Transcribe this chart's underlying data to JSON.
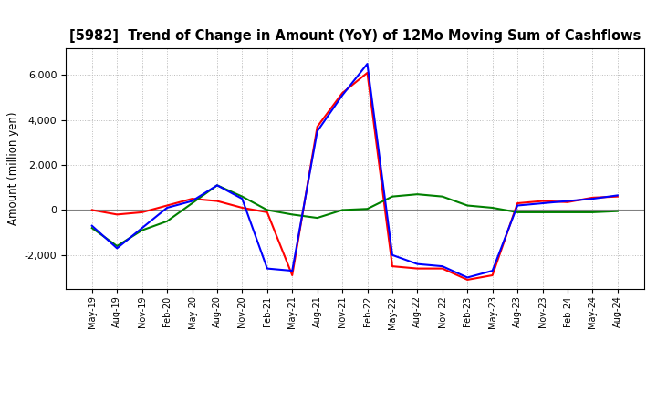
{
  "title": "[5982]  Trend of Change in Amount (YoY) of 12Mo Moving Sum of Cashflows",
  "ylabel": "Amount (million yen)",
  "x_labels": [
    "May-19",
    "Aug-19",
    "Nov-19",
    "Feb-20",
    "May-20",
    "Aug-20",
    "Nov-20",
    "Feb-21",
    "May-21",
    "Aug-21",
    "Nov-21",
    "Feb-22",
    "May-22",
    "Aug-22",
    "Nov-22",
    "Feb-23",
    "May-23",
    "Aug-23",
    "Nov-23",
    "Feb-24",
    "May-24",
    "Aug-24"
  ],
  "operating": [
    0,
    -200,
    -100,
    200,
    500,
    400,
    100,
    -100,
    -2900,
    3700,
    5200,
    6100,
    -2500,
    -2600,
    -2600,
    -3100,
    -2900,
    300,
    400,
    350,
    550,
    600
  ],
  "investing": [
    -800,
    -1600,
    -900,
    -500,
    300,
    1100,
    600,
    0,
    -200,
    -350,
    0,
    50,
    600,
    700,
    600,
    200,
    100,
    -100,
    -100,
    -100,
    -100,
    -50
  ],
  "free": [
    -700,
    -1700,
    -800,
    100,
    400,
    1100,
    500,
    -2600,
    -2700,
    3500,
    5100,
    6500,
    -2000,
    -2400,
    -2500,
    -3000,
    -2700,
    200,
    300,
    400,
    500,
    650
  ],
  "operating_color": "#ff0000",
  "investing_color": "#008000",
  "free_color": "#0000ff",
  "ylim": [
    -3500,
    7200
  ],
  "yticks": [
    -2000,
    0,
    2000,
    4000,
    6000
  ],
  "background_color": "#ffffff",
  "grid_color": "#aaaaaa",
  "line_width": 1.5
}
